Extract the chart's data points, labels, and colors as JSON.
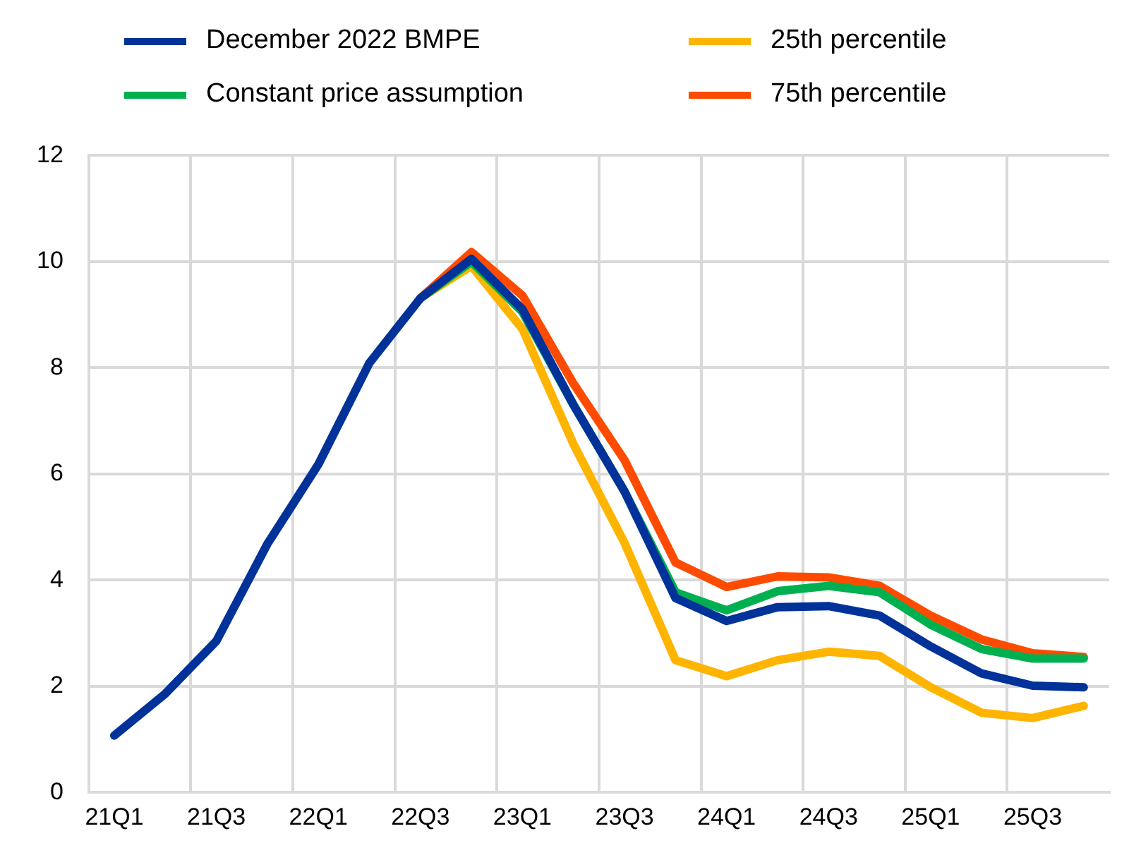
{
  "chart_data": {
    "type": "line",
    "categories": [
      "21Q1",
      null,
      "21Q3",
      null,
      "22Q1",
      null,
      "22Q3",
      null,
      "23Q1",
      null,
      "23Q3",
      null,
      "24Q1",
      null,
      "24Q3",
      null,
      "25Q1",
      null,
      "25Q3",
      null
    ],
    "series": [
      {
        "name": "December 2022 BMPE",
        "color": "#003299",
        "values": [
          1.07,
          1.86,
          2.85,
          4.68,
          6.18,
          8.09,
          9.31,
          10.05,
          9.1,
          7.3,
          5.67,
          3.66,
          3.23,
          3.49,
          3.51,
          3.33,
          2.75,
          2.24,
          2.01,
          1.98
        ]
      },
      {
        "name": "Constant price assumption",
        "color": "#00b050",
        "values": [
          null,
          null,
          null,
          null,
          null,
          null,
          9.31,
          10.0,
          9.05,
          7.3,
          5.67,
          3.77,
          3.43,
          3.79,
          3.89,
          3.77,
          3.16,
          2.7,
          2.52,
          2.52
        ]
      },
      {
        "name": "25th percentile",
        "color": "#ffb400",
        "values": [
          null,
          null,
          null,
          null,
          null,
          null,
          9.31,
          9.92,
          8.73,
          6.56,
          4.7,
          2.49,
          2.19,
          2.49,
          2.65,
          2.57,
          1.98,
          1.5,
          1.4,
          1.63
        ]
      },
      {
        "name": "75th percentile",
        "color": "#ff4b00",
        "values": [
          null,
          null,
          null,
          null,
          null,
          null,
          9.31,
          10.18,
          9.36,
          7.7,
          6.26,
          4.33,
          3.87,
          4.07,
          4.05,
          3.89,
          3.33,
          2.88,
          2.62,
          2.55
        ]
      }
    ],
    "ylim": [
      0,
      12
    ],
    "yticks": [
      0,
      2,
      4,
      6,
      8,
      10,
      12
    ],
    "grid": true,
    "legend": "top",
    "marker": "none",
    "line_style": "solid"
  }
}
